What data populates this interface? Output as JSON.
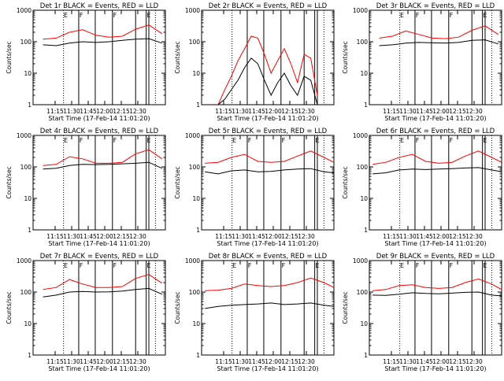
{
  "figure": {
    "xlabel": "Start Time (17-Feb-14 11:01:20)",
    "ylabel": "Counts/sec",
    "x_tick_labels": [
      "11:15",
      "11:30",
      "11:45",
      "12:00",
      "12:15",
      "12:30"
    ],
    "y_tick_labels": [
      "1",
      "10",
      "100",
      "1000"
    ],
    "series_colors": {
      "events": "#000000",
      "lld": "#ff0000"
    }
  },
  "chart_data": [
    {
      "type": "line",
      "title": "Det 1r  BLACK = Events, RED = LLD",
      "xlabel": "Start Time (17-Feb-14 11:01:20)",
      "ylabel": "Counts/sec",
      "x_unit": "minutes after 11:00",
      "xlim": [
        5,
        45
      ],
      "ylim": [
        1,
        1000
      ],
      "yscale": "log",
      "x": [
        8,
        12,
        16,
        20,
        24,
        28,
        32,
        36,
        40,
        44
      ],
      "series": [
        {
          "values": [
            120,
            130,
            200,
            240,
            160,
            140,
            150,
            250,
            340,
            180
          ]
        },
        {
          "values": [
            80,
            75,
            90,
            100,
            95,
            100,
            110,
            120,
            125,
            90
          ]
        }
      ],
      "markers": {
        "solid": [
          18.8,
          23.8,
          29.0,
          36.0,
          39.2,
          40.0
        ],
        "dotted": [
          14.2,
          42.0
        ]
      },
      "annotations": [
        "E",
        "F",
        "F",
        "E"
      ]
    },
    {
      "type": "line",
      "title": "Det 2r  BLACK = Events, RED = LLD",
      "xlabel": "Start Time (17-Feb-14 11:01:20)",
      "ylabel": "Counts/sec",
      "x_unit": "minutes after 11:00",
      "xlim": [
        5,
        45
      ],
      "ylim": [
        1,
        1000
      ],
      "yscale": "log",
      "x": [
        10,
        12,
        14,
        16,
        18,
        20,
        22,
        24,
        26,
        28,
        30,
        32,
        34,
        36,
        38,
        40
      ],
      "series": [
        {
          "values": [
            1,
            3,
            8,
            25,
            60,
            150,
            130,
            40,
            10,
            25,
            60,
            20,
            5,
            40,
            30,
            2
          ]
        },
        {
          "values": [
            1,
            1.5,
            3,
            6,
            15,
            30,
            20,
            6,
            2,
            5,
            10,
            4,
            2,
            8,
            6,
            1
          ]
        }
      ],
      "markers": {
        "solid": [
          18.8,
          23.8,
          29.0,
          36.0,
          39.2,
          40.0
        ],
        "dotted": [
          14.2,
          42.0
        ]
      },
      "annotations": []
    },
    {
      "type": "line",
      "title": "Det 3r  BLACK = Events, RED = LLD",
      "xlabel": "Start Time (17-Feb-14 11:01:20)",
      "ylabel": "Counts/sec",
      "x_unit": "minutes after 11:00",
      "xlim": [
        5,
        45
      ],
      "ylim": [
        1,
        1000
      ],
      "yscale": "log",
      "x": [
        8,
        12,
        16,
        20,
        24,
        28,
        32,
        36,
        40,
        44
      ],
      "series": [
        {
          "values": [
            130,
            150,
            220,
            170,
            130,
            125,
            140,
            230,
            320,
            170
          ]
        },
        {
          "values": [
            75,
            80,
            90,
            95,
            92,
            90,
            95,
            110,
            115,
            85
          ]
        }
      ],
      "markers": {
        "solid": [
          18.8,
          23.8,
          29.0,
          36.0,
          39.2,
          40.0
        ],
        "dotted": [
          14.2,
          42.0
        ]
      },
      "annotations": [
        "E",
        "F",
        "F",
        "E"
      ]
    },
    {
      "type": "line",
      "title": "Det 4r  BLACK = Events, RED = LLD",
      "xlabel": "Start Time (17-Feb-14 11:01:20)",
      "ylabel": "Counts/sec",
      "x_unit": "minutes after 11:00",
      "xlim": [
        5,
        45
      ],
      "ylim": [
        1,
        1000
      ],
      "yscale": "log",
      "x": [
        8,
        12,
        16,
        20,
        24,
        28,
        32,
        36,
        40,
        44
      ],
      "series": [
        {
          "values": [
            110,
            120,
            210,
            180,
            130,
            130,
            140,
            260,
            350,
            180
          ]
        },
        {
          "values": [
            85,
            90,
            110,
            120,
            118,
            120,
            125,
            130,
            140,
            90
          ]
        }
      ],
      "markers": {
        "solid": [
          18.8,
          23.8,
          29.0,
          36.0,
          39.2,
          40.0
        ],
        "dotted": [
          14.2,
          42.0
        ]
      },
      "annotations": [
        "E",
        "F",
        "F",
        "E"
      ]
    },
    {
      "type": "line",
      "title": "Det 5r  BLACK = Events, RED = LLD",
      "xlabel": "Start Time (17-Feb-14 11:01:20)",
      "ylabel": "Counts/sec",
      "x_unit": "minutes after 11:00",
      "xlim": [
        5,
        45
      ],
      "ylim": [
        1,
        1000
      ],
      "yscale": "log",
      "x": [
        6,
        10,
        14,
        18,
        22,
        26,
        30,
        34,
        38,
        42,
        45
      ],
      "series": [
        {
          "values": [
            130,
            140,
            200,
            250,
            150,
            140,
            150,
            220,
            320,
            200,
            140
          ]
        },
        {
          "values": [
            70,
            60,
            75,
            80,
            70,
            72,
            80,
            85,
            88,
            70,
            65
          ]
        }
      ],
      "markers": {
        "solid": [
          18.8,
          23.8,
          29.0,
          36.0,
          39.2,
          40.0
        ],
        "dotted": [
          14.2,
          42.0
        ]
      },
      "annotations": [
        "E",
        "F",
        "F",
        "E"
      ]
    },
    {
      "type": "line",
      "title": "Det 6r  BLACK = Events, RED = LLD",
      "xlabel": "Start Time (17-Feb-14 11:01:20)",
      "ylabel": "Counts/sec",
      "x_unit": "minutes after 11:00",
      "xlim": [
        5,
        45
      ],
      "ylim": [
        1,
        1000
      ],
      "yscale": "log",
      "x": [
        6,
        10,
        14,
        18,
        22,
        26,
        30,
        34,
        38,
        42,
        45
      ],
      "series": [
        {
          "values": [
            120,
            140,
            200,
            250,
            150,
            130,
            140,
            220,
            320,
            200,
            140
          ]
        },
        {
          "values": [
            60,
            65,
            80,
            85,
            82,
            85,
            88,
            92,
            95,
            80,
            70
          ]
        }
      ],
      "markers": {
        "solid": [
          18.8,
          23.8,
          29.0,
          36.0,
          39.2,
          40.0
        ],
        "dotted": [
          14.2,
          42.0
        ]
      },
      "annotations": [
        "E",
        "F",
        "F",
        "E"
      ]
    },
    {
      "type": "line",
      "title": "Det 7r  BLACK = Events, RED = LLD",
      "xlabel": "Start Time (17-Feb-14 11:01:20)",
      "ylabel": "Counts/sec",
      "x_unit": "minutes after 11:00",
      "xlim": [
        5,
        45
      ],
      "ylim": [
        1,
        1000
      ],
      "yscale": "log",
      "x": [
        8,
        12,
        16,
        20,
        24,
        28,
        32,
        36,
        40,
        44
      ],
      "series": [
        {
          "values": [
            120,
            140,
            250,
            180,
            140,
            140,
            150,
            270,
            360,
            190
          ]
        },
        {
          "values": [
            70,
            80,
            100,
            105,
            100,
            102,
            108,
            120,
            130,
            85
          ]
        }
      ],
      "markers": {
        "solid": [
          18.8,
          23.8,
          29.0,
          36.0,
          39.2,
          40.0
        ],
        "dotted": [
          14.2,
          42.0
        ]
      },
      "annotations": [
        "E",
        "F",
        "F",
        "E"
      ]
    },
    {
      "type": "line",
      "title": "Det 8r  BLACK = Events, RED = LLD",
      "xlabel": "Start Time (17-Feb-14 11:01:20)",
      "ylabel": "Counts/sec",
      "x_unit": "minutes after 11:00",
      "xlim": [
        5,
        45
      ],
      "ylim": [
        1,
        1000
      ],
      "yscale": "log",
      "x": [
        6,
        10,
        14,
        18,
        22,
        26,
        30,
        34,
        38,
        42,
        45
      ],
      "series": [
        {
          "values": [
            110,
            115,
            130,
            180,
            160,
            150,
            160,
            200,
            280,
            200,
            140
          ]
        },
        {
          "values": [
            30,
            35,
            38,
            40,
            42,
            45,
            40,
            42,
            45,
            38,
            35
          ]
        }
      ],
      "markers": {
        "solid": [
          18.8,
          23.8,
          29.0,
          36.0,
          39.2,
          40.0
        ],
        "dotted": [
          14.2,
          42.0
        ]
      },
      "annotations": [
        "E",
        "F",
        "F",
        "E"
      ]
    },
    {
      "type": "line",
      "title": "Det 9r  BLACK = Events, RED = LLD",
      "xlabel": "Start Time (17-Feb-14 11:01:20)",
      "ylabel": "Counts/sec",
      "x_unit": "minutes after 11:00",
      "xlim": [
        5,
        45
      ],
      "ylim": [
        1,
        1000
      ],
      "yscale": "log",
      "x": [
        6,
        10,
        14,
        18,
        22,
        26,
        30,
        34,
        38,
        42,
        45
      ],
      "series": [
        {
          "values": [
            110,
            120,
            160,
            170,
            140,
            130,
            140,
            200,
            260,
            180,
            120
          ]
        },
        {
          "values": [
            80,
            78,
            85,
            95,
            90,
            88,
            92,
            98,
            100,
            80,
            75
          ]
        }
      ],
      "markers": {
        "solid": [
          18.8,
          23.8,
          29.0,
          36.0,
          39.2,
          40.0
        ],
        "dotted": [
          14.2,
          42.0
        ]
      },
      "annotations": [
        "E",
        "F",
        "F",
        "E"
      ]
    }
  ]
}
